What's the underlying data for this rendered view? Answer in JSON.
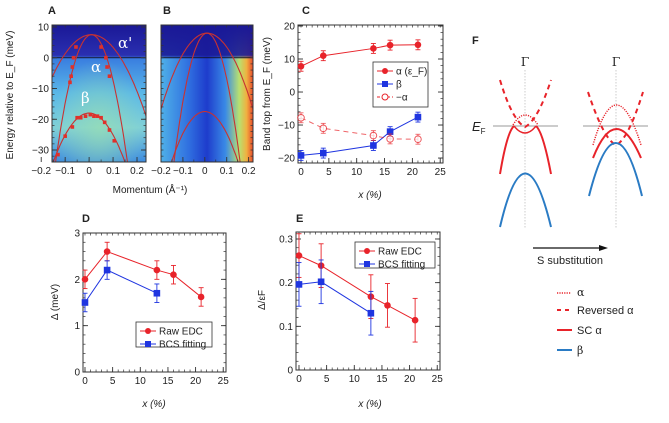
{
  "figure": {
    "panel_labels": [
      "A",
      "B",
      "C",
      "D",
      "E",
      "F"
    ]
  },
  "chart_data": [
    {
      "id": "A",
      "type": "heatmap",
      "xlabel": "Momentum (Å⁻¹)",
      "ylabel": "Energy relative to E_F (meV)",
      "xticks": [
        -0.2,
        -0.1,
        0,
        0.1,
        0.2
      ],
      "yticks": [
        10,
        0,
        -10,
        -20,
        -30
      ],
      "band_labels": [
        "α'",
        "α",
        "β"
      ],
      "bands": [
        {
          "name": "α'",
          "top_meV": 7.5,
          "k0": 0.01,
          "curvature": 510
        },
        {
          "name": "α",
          "top_meV": 7.5,
          "k0": 0.01,
          "curvature": 1840
        },
        {
          "name": "β",
          "top_meV": -18,
          "k0": 0.0,
          "curvature": 710
        }
      ],
      "points": [
        [
          -0.055,
          3.5
        ],
        [
          -0.065,
          0
        ],
        [
          -0.07,
          -3
        ],
        [
          -0.075,
          -6
        ],
        [
          -0.08,
          -8
        ],
        [
          0.05,
          3.5
        ],
        [
          0.07,
          0
        ],
        [
          0.075,
          -3
        ],
        [
          0.085,
          -6
        ],
        [
          -0.13,
          -31.5
        ],
        [
          -0.1,
          -25.5
        ],
        [
          -0.07,
          -22.5
        ],
        [
          -0.05,
          -19.5
        ],
        [
          -0.035,
          -19.5
        ],
        [
          -0.015,
          -19
        ],
        [
          0.005,
          -18.5
        ],
        [
          0.02,
          -19
        ],
        [
          0.035,
          -19
        ],
        [
          0.05,
          -19.5
        ],
        [
          0.065,
          -21
        ],
        [
          0.085,
          -23.5
        ],
        [
          0.105,
          -27
        ]
      ]
    },
    {
      "id": "B",
      "type": "heatmap",
      "xticks": [
        -0.2,
        -0.1,
        0,
        0.1,
        0.2
      ],
      "bands": [
        {
          "name": "α'",
          "top_meV": 8,
          "k0": 0.01,
          "curvature": 560
        },
        {
          "name": "α",
          "top_meV": 8,
          "k0": 0.01,
          "curvature": 1840
        },
        {
          "name": "β",
          "top_meV": -17.5,
          "k0": 0.0,
          "curvature": 710
        }
      ]
    },
    {
      "id": "C",
      "type": "line",
      "xlabel": "x (%)",
      "ylabel": "Band top from E_F (meV)",
      "xlim": [
        0,
        25
      ],
      "ylim": [
        -20,
        20
      ],
      "xticks": [
        0,
        5,
        10,
        15,
        20,
        25
      ],
      "yticks": [
        20,
        10,
        0,
        -10,
        -20
      ],
      "legend": "center-right",
      "series": [
        {
          "name": "α (ε_F)",
          "color": "#e8232a",
          "marker": "circle",
          "dashed": false,
          "x": [
            0,
            4,
            13,
            16,
            21
          ],
          "y": [
            7.8,
            11,
            13.2,
            14.2,
            14.3
          ],
          "err": [
            1.5,
            1.5,
            1.5,
            1.5,
            1.5
          ]
        },
        {
          "name": "β",
          "color": "#1f35e0",
          "marker": "square",
          "dashed": false,
          "x": [
            0,
            4,
            13,
            16,
            21
          ],
          "y": [
            -19.2,
            -18.5,
            -16.2,
            -12,
            -7.6
          ],
          "err": [
            1.5,
            1.5,
            1.5,
            1.5,
            1.5
          ]
        },
        {
          "name": "−α",
          "color": "#e8232a",
          "marker": "open-circle",
          "dashed": true,
          "x": [
            0,
            4,
            13,
            16,
            21
          ],
          "y": [
            -7.8,
            -11,
            -13.2,
            -14.2,
            -14.3
          ],
          "err": [
            1.5,
            1.5,
            1.5,
            1.5,
            1.5
          ]
        }
      ]
    },
    {
      "id": "D",
      "type": "line",
      "xlabel": "x (%)",
      "ylabel": "Δ (meV)",
      "xlim": [
        0,
        25
      ],
      "ylim": [
        0,
        3
      ],
      "xticks": [
        0,
        5,
        10,
        15,
        20,
        25
      ],
      "yticks": [
        0,
        1,
        2,
        3
      ],
      "legend": "bottom-right",
      "series": [
        {
          "name": "Raw EDC",
          "color": "#e8232a",
          "marker": "circle",
          "x": [
            0,
            4,
            13,
            16,
            21
          ],
          "y": [
            2.0,
            2.6,
            2.2,
            2.1,
            1.62
          ],
          "err": [
            0.2,
            0.2,
            0.2,
            0.2,
            0.2
          ]
        },
        {
          "name": "BCS fitting",
          "color": "#1f35e0",
          "marker": "square",
          "x": [
            0,
            4,
            13
          ],
          "y": [
            1.5,
            2.2,
            1.7
          ],
          "err": [
            0.2,
            0.2,
            0.2
          ]
        }
      ]
    },
    {
      "id": "E",
      "type": "line",
      "xlabel": "x (%)",
      "ylabel": "Δ/εF",
      "xlim": [
        0,
        25
      ],
      "ylim": [
        0,
        0.3
      ],
      "xticks": [
        0,
        5,
        10,
        15,
        20,
        25
      ],
      "yticks": [
        0,
        0.1,
        0.2,
        0.3
      ],
      "legend": "top-right",
      "series": [
        {
          "name": "Raw EDC",
          "color": "#e8232a",
          "marker": "circle",
          "x": [
            0,
            4,
            13,
            16,
            21
          ],
          "y": [
            0.262,
            0.239,
            0.168,
            0.148,
            0.114
          ],
          "err": [
            0.05,
            0.05,
            0.05,
            0.05,
            0.05
          ]
        },
        {
          "name": "BCS fitting",
          "color": "#1f35e0",
          "marker": "square",
          "x": [
            0,
            4,
            13
          ],
          "y": [
            0.196,
            0.202,
            0.13
          ],
          "err": [
            0.05,
            0.05,
            0.05
          ]
        }
      ]
    }
  ],
  "schematic": {
    "gamma_label": "Γ",
    "ef_label": "E",
    "ef_sub": "F",
    "arrow_label": "S substitution",
    "legend": [
      {
        "label": "α",
        "style": "dotted",
        "color": "#e8232a"
      },
      {
        "label": "Reversed α",
        "style": "dashed",
        "color": "#e8232a"
      },
      {
        "label": "SC α",
        "style": "solid",
        "color": "#e8232a"
      },
      {
        "label": "β",
        "style": "solid",
        "color": "#2a7bc4"
      }
    ]
  }
}
